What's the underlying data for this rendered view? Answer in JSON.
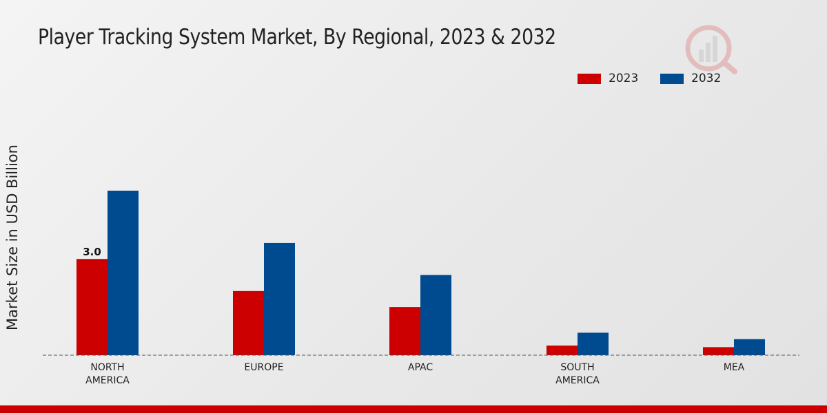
{
  "chart_data": {
    "type": "bar",
    "title": "Player Tracking System Market, By Regional, 2023 & 2032",
    "xlabel": "",
    "ylabel": "Market Size in USD Billion",
    "categories": [
      "NORTH\nAMERICA",
      "EUROPE",
      "APAC",
      "SOUTH\nAMERICA",
      "MEA"
    ],
    "series": [
      {
        "name": "2023",
        "color": "#cc0000",
        "values": [
          3.0,
          2.0,
          1.5,
          0.3,
          0.25
        ]
      },
      {
        "name": "2032",
        "color": "#004a8f",
        "values": [
          5.13,
          3.5,
          2.5,
          0.7,
          0.5
        ]
      }
    ],
    "data_labels": [
      {
        "series": 0,
        "index": 0,
        "text": "3.0"
      }
    ],
    "ylim": [
      0,
      8.5
    ],
    "grid": false,
    "legend": "top-right"
  }
}
